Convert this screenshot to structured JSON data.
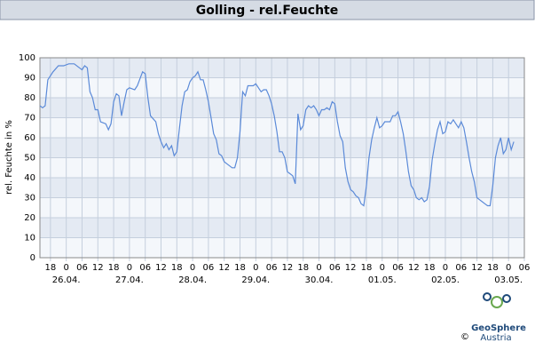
{
  "chart_data": {
    "type": "line",
    "title": "Golling - rel.Feuchte",
    "y_label": "rel. Feuchte in %",
    "x": [
      14,
      15,
      16,
      17,
      19,
      21,
      23,
      25,
      27,
      29,
      30,
      31,
      32,
      33,
      34,
      35,
      36,
      37,
      39,
      40,
      41,
      42,
      43,
      44,
      45,
      46,
      47,
      48,
      50,
      51,
      53,
      54,
      55,
      56,
      58,
      59,
      60,
      61,
      62,
      63,
      64,
      65,
      66,
      67,
      68,
      69,
      70,
      71,
      72,
      73,
      74,
      75,
      76,
      77,
      78,
      79,
      80,
      81,
      82,
      83,
      84,
      85,
      87,
      88,
      89,
      90,
      91,
      92,
      93,
      94,
      95,
      96,
      97,
      98,
      99,
      100,
      101,
      102,
      103,
      104,
      105,
      106,
      107,
      108,
      109,
      110,
      111,
      112,
      113,
      114,
      115,
      116,
      117,
      118,
      119,
      120,
      121,
      122,
      123,
      124,
      125,
      126,
      127,
      128,
      129,
      130,
      131,
      132,
      133,
      134,
      135,
      136,
      137,
      138,
      139,
      140,
      141,
      142,
      143,
      144,
      145,
      146,
      147,
      148,
      149,
      150,
      151,
      152,
      153,
      154,
      155,
      156,
      157,
      158,
      159,
      160,
      161,
      162,
      163,
      164,
      165,
      166,
      167,
      168,
      169,
      170,
      171,
      172,
      173,
      174,
      175,
      176,
      177,
      178,
      179,
      180,
      181,
      182,
      183,
      184,
      185,
      186,
      187,
      188,
      189,
      190,
      191,
      192,
      193,
      194
    ],
    "series": [
      {
        "name": "rel. Feuchte",
        "color": "#5b8ad8",
        "values": [
          76,
          75,
          76,
          89,
          93,
          96,
          96,
          97,
          97,
          95,
          94,
          96,
          95,
          83,
          80,
          74,
          74,
          68,
          67,
          64,
          67,
          78,
          82,
          81,
          71,
          78,
          84,
          85,
          84,
          86,
          93,
          92,
          80,
          71,
          68,
          62,
          58,
          55,
          57,
          54,
          56,
          51,
          53,
          65,
          76,
          83,
          84,
          88,
          90,
          91,
          93,
          89,
          89,
          84,
          78,
          70,
          62,
          59,
          52,
          51,
          48,
          47,
          45,
          45,
          50,
          63,
          83,
          81,
          86,
          86,
          86,
          87,
          85,
          83,
          84,
          84,
          81,
          77,
          71,
          63,
          53,
          53,
          50,
          43,
          42,
          41,
          37,
          72,
          64,
          66,
          74,
          76,
          75,
          76,
          74,
          71,
          74,
          74,
          75,
          74,
          78,
          77,
          68,
          61,
          58,
          45,
          38,
          34,
          33,
          31,
          30,
          27,
          26,
          36,
          50,
          59,
          65,
          70,
          65,
          66,
          68,
          68,
          68,
          71,
          71,
          73,
          68,
          62,
          53,
          43,
          36,
          34,
          30,
          29,
          30,
          28,
          29,
          36,
          49,
          57,
          64,
          68,
          62,
          63,
          68,
          67,
          69,
          67,
          65,
          68,
          65,
          58,
          50,
          43,
          38,
          30,
          29,
          28,
          27,
          26,
          26,
          36,
          50,
          56,
          60,
          52,
          54,
          60,
          54,
          58
        ]
      }
    ],
    "xlim": [
      14,
      198
    ],
    "xticks": [
      18,
      {
        "value": 24,
        "label": "0"
      },
      {
        "value": 30,
        "label": "06"
      },
      {
        "value": 36,
        "label": "12"
      },
      {
        "value": 42,
        "label": "18"
      },
      {
        "value": 48,
        "label": "0"
      },
      {
        "value": 54,
        "label": "06"
      },
      {
        "value": 60,
        "label": "12"
      },
      {
        "value": 66,
        "label": "18"
      },
      {
        "value": 72,
        "label": "0"
      },
      {
        "value": 78,
        "label": "06"
      },
      {
        "value": 84,
        "label": "12"
      },
      {
        "value": 90,
        "label": "18"
      },
      {
        "value": 96,
        "label": "0"
      },
      {
        "value": 102,
        "label": "06"
      },
      {
        "value": 108,
        "label": "12"
      },
      {
        "value": 114,
        "label": "18"
      },
      {
        "value": 120,
        "label": "0"
      },
      {
        "value": 126,
        "label": "06"
      },
      {
        "value": 132,
        "label": "12"
      },
      {
        "value": 138,
        "label": "18"
      },
      {
        "value": 144,
        "label": "0"
      },
      {
        "value": 150,
        "label": "06"
      },
      {
        "value": 156,
        "label": "12"
      },
      {
        "value": 162,
        "label": "18"
      },
      {
        "value": 168,
        "label": "0"
      },
      {
        "value": 174,
        "label": "06"
      },
      {
        "value": 180,
        "label": "12"
      },
      {
        "value": 186,
        "label": "18"
      },
      {
        "value": 192,
        "label": "0"
      },
      {
        "value": 198,
        "label": "06"
      }
    ],
    "xdates": [
      {
        "value": 24,
        "label": "26.04."
      },
      {
        "value": 48,
        "label": "27.04."
      },
      {
        "value": 72,
        "label": "28.04."
      },
      {
        "value": 96,
        "label": "29.04."
      },
      {
        "value": 120,
        "label": "30.04."
      },
      {
        "value": 144,
        "label": "01.05."
      },
      {
        "value": 168,
        "label": "02.05."
      },
      {
        "value": 192,
        "label": "03.05."
      }
    ],
    "ylim": [
      0,
      100
    ],
    "yticks": [
      0,
      10,
      20,
      30,
      40,
      50,
      60,
      70,
      80,
      90,
      100
    ],
    "grid": true
  },
  "logo": {
    "name": "GeoSphere",
    "sub": "Austria",
    "copyright": "©"
  }
}
